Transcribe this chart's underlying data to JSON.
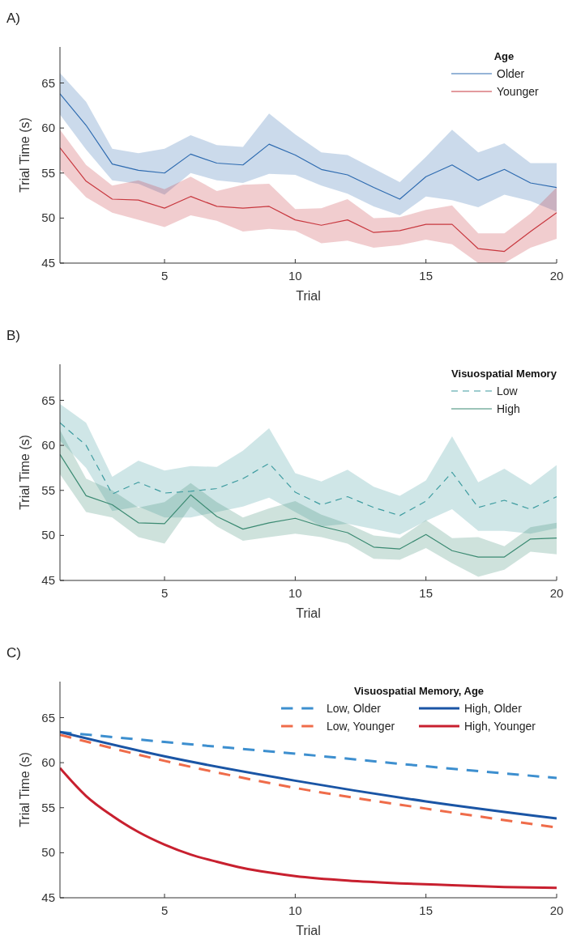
{
  "chart_data": [
    {
      "type": "line",
      "title": "A)",
      "xlabel": "Trial",
      "ylabel": "Trial Time (s)",
      "legend_title": "Age",
      "legend": "top right",
      "xlim": [
        1,
        20
      ],
      "ylim": [
        45,
        69
      ],
      "xticks": [
        5,
        10,
        15,
        20
      ],
      "yticks": [
        45,
        50,
        55,
        60,
        65
      ],
      "grid": false,
      "x": [
        1,
        2,
        3,
        4,
        5,
        6,
        7,
        8,
        9,
        10,
        11,
        12,
        13,
        14,
        15,
        16,
        17,
        18,
        19,
        20
      ],
      "series": [
        {
          "name": "Older",
          "color": "#2e6bb0",
          "line_style": "solid",
          "values": [
            63.8,
            60.3,
            56.0,
            55.3,
            55.0,
            57.1,
            56.1,
            55.9,
            58.2,
            57.0,
            55.4,
            54.8,
            53.4,
            52.1,
            54.6,
            55.9,
            54.2,
            55.4,
            53.9,
            53.4
          ],
          "upper": [
            66.1,
            62.9,
            57.7,
            57.2,
            57.7,
            59.2,
            58.1,
            57.9,
            61.6,
            59.3,
            57.3,
            57.0,
            55.5,
            54.0,
            56.8,
            59.8,
            57.3,
            58.3,
            56.1,
            56.1
          ],
          "lower": [
            61.5,
            57.6,
            54.2,
            53.8,
            52.6,
            55.0,
            54.2,
            53.9,
            54.9,
            54.8,
            53.6,
            52.7,
            51.3,
            50.3,
            52.4,
            52.0,
            51.2,
            52.6,
            51.9,
            50.7
          ]
        },
        {
          "name": "Younger",
          "color": "#c8383f",
          "line_style": "solid",
          "values": [
            57.8,
            54.1,
            52.1,
            52.0,
            51.1,
            52.4,
            51.3,
            51.1,
            51.3,
            49.8,
            49.2,
            49.8,
            48.4,
            48.6,
            49.3,
            49.3,
            46.6,
            46.3,
            48.5,
            50.6
          ],
          "upper": [
            59.8,
            55.9,
            53.6,
            54.2,
            53.2,
            54.6,
            53.0,
            53.7,
            53.8,
            51.0,
            51.1,
            52.1,
            50.0,
            50.1,
            50.9,
            51.4,
            48.3,
            48.3,
            50.5,
            53.4
          ],
          "lower": [
            55.4,
            52.3,
            50.6,
            49.8,
            49.0,
            50.3,
            49.7,
            48.5,
            48.8,
            48.6,
            47.2,
            47.5,
            46.7,
            47.0,
            47.6,
            47.1,
            45.0,
            45.0,
            46.7,
            47.7
          ]
        }
      ]
    },
    {
      "type": "line",
      "title": "B)",
      "xlabel": "Trial",
      "ylabel": "Trial Time (s)",
      "legend_title": "Visuospatial Memory",
      "legend": "top right",
      "xlim": [
        1,
        20
      ],
      "ylim": [
        45,
        69
      ],
      "xticks": [
        5,
        10,
        15,
        20
      ],
      "yticks": [
        45,
        50,
        55,
        60,
        65
      ],
      "grid": false,
      "x": [
        1,
        2,
        3,
        4,
        5,
        6,
        7,
        8,
        9,
        10,
        11,
        12,
        13,
        14,
        15,
        16,
        17,
        18,
        19,
        20
      ],
      "series": [
        {
          "name": "Low",
          "color": "#3e9ca0",
          "line_style": "dashed",
          "values": [
            62.5,
            60.0,
            54.6,
            55.9,
            54.7,
            54.9,
            55.2,
            56.3,
            58.0,
            54.8,
            53.4,
            54.3,
            53.1,
            52.2,
            53.8,
            57.0,
            53.1,
            53.9,
            52.9,
            54.3
          ],
          "upper": [
            64.6,
            62.5,
            56.5,
            58.3,
            57.2,
            57.7,
            57.6,
            59.4,
            61.9,
            56.9,
            56.0,
            57.3,
            55.4,
            54.4,
            56.1,
            61.0,
            55.9,
            57.4,
            55.6,
            57.8
          ],
          "lower": [
            60.5,
            57.5,
            52.7,
            53.2,
            52.0,
            52.0,
            52.6,
            53.2,
            54.2,
            52.6,
            51.0,
            51.3,
            50.7,
            50.1,
            51.6,
            52.9,
            50.5,
            50.5,
            50.2,
            50.8
          ]
        },
        {
          "name": "High",
          "color": "#3b8a72",
          "line_style": "solid",
          "values": [
            59.0,
            54.4,
            53.4,
            51.4,
            51.3,
            54.5,
            52.1,
            50.7,
            51.4,
            51.9,
            51.0,
            50.3,
            48.7,
            48.5,
            50.1,
            48.3,
            47.6,
            47.6,
            49.6,
            49.7
          ],
          "upper": [
            61.7,
            56.3,
            55.0,
            53.1,
            53.7,
            55.8,
            53.7,
            52.0,
            53.0,
            53.8,
            52.3,
            51.3,
            50.0,
            49.7,
            51.7,
            49.7,
            49.8,
            48.8,
            50.9,
            51.4
          ],
          "lower": [
            56.8,
            52.6,
            52.0,
            49.8,
            49.1,
            53.2,
            51.0,
            49.4,
            49.8,
            50.2,
            49.8,
            49.1,
            47.4,
            47.3,
            48.6,
            46.9,
            45.4,
            46.2,
            48.2,
            47.9
          ]
        }
      ]
    },
    {
      "type": "line",
      "title": "C)",
      "xlabel": "Trial",
      "ylabel": "Trial Time (s)",
      "legend_title": "Visuospatial Memory, Age",
      "legend": "top right",
      "xlim": [
        1,
        20
      ],
      "ylim": [
        45,
        69
      ],
      "xticks": [
        5,
        10,
        15,
        20
      ],
      "yticks": [
        45,
        50,
        55,
        60,
        65
      ],
      "grid": false,
      "series": [
        {
          "name": "Low, Older",
          "color": "#3d8fcf",
          "line_style": "dashed",
          "x": [
            1,
            5,
            10,
            15,
            20
          ],
          "values": [
            63.4,
            62.3,
            61.0,
            59.6,
            58.3
          ]
        },
        {
          "name": "Low, Younger",
          "color": "#ef6c4a",
          "line_style": "dashed",
          "x": [
            1,
            5,
            10,
            15,
            20
          ],
          "values": [
            63.1,
            60.2,
            57.2,
            54.9,
            52.8
          ]
        },
        {
          "name": "High, Older",
          "color": "#1a55a5",
          "line_style": "solid",
          "x": [
            1,
            5,
            10,
            15,
            20
          ],
          "values": [
            63.4,
            60.7,
            58.0,
            55.7,
            53.8
          ]
        },
        {
          "name": "High, Younger",
          "color": "#c8202f",
          "line_style": "solid",
          "x": [
            1,
            2,
            3,
            4,
            5,
            6,
            7,
            8,
            9,
            10,
            12,
            14,
            16,
            18,
            20
          ],
          "values": [
            59.4,
            56.3,
            54.1,
            52.3,
            50.9,
            49.8,
            49.0,
            48.3,
            47.8,
            47.4,
            46.9,
            46.6,
            46.4,
            46.2,
            46.1
          ]
        }
      ]
    }
  ]
}
